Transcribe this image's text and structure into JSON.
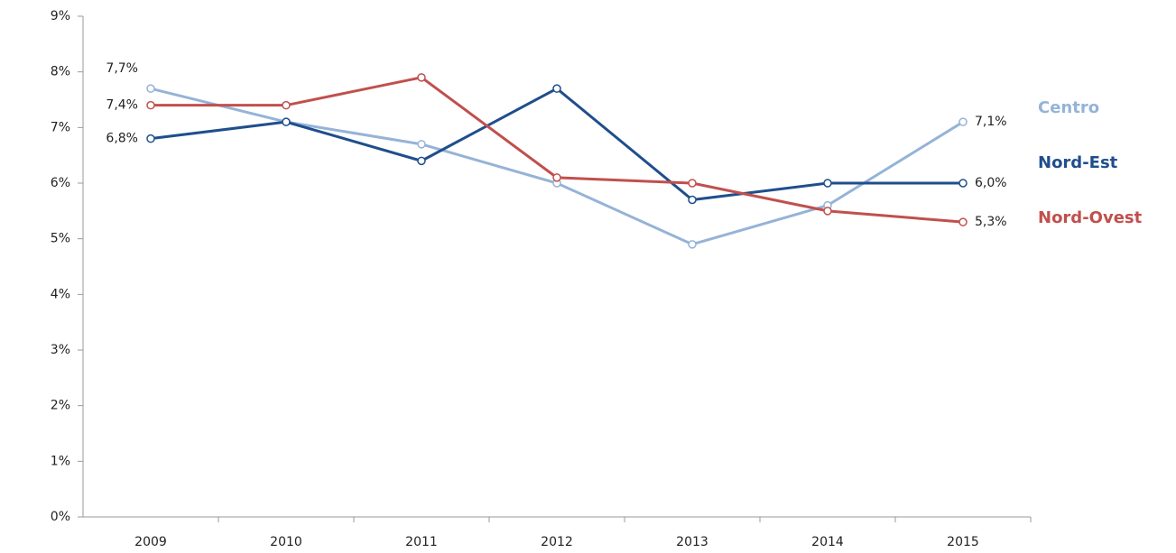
{
  "chart_data": {
    "type": "line",
    "categories": [
      "2009",
      "2010",
      "2011",
      "2012",
      "2013",
      "2014",
      "2015"
    ],
    "series": [
      {
        "name": "Centro",
        "color": "#95b3d7",
        "values": [
          7.7,
          7.1,
          6.7,
          6.0,
          4.9,
          5.6,
          7.1
        ],
        "value_labels": [
          "7,7%",
          null,
          null,
          null,
          null,
          null,
          "7,1%"
        ]
      },
      {
        "name": "Nord-Est",
        "color": "#1f4e8c",
        "values": [
          6.8,
          7.1,
          6.4,
          7.7,
          5.7,
          6.0,
          6.0
        ],
        "value_labels": [
          "6,8%",
          null,
          null,
          null,
          null,
          null,
          "6,0%"
        ]
      },
      {
        "name": "Nord-Ovest",
        "color": "#c0504d",
        "values": [
          7.4,
          7.4,
          7.9,
          6.1,
          6.0,
          5.5,
          5.3
        ],
        "value_labels": [
          "7,4%",
          null,
          null,
          null,
          null,
          null,
          "5,3%"
        ]
      }
    ],
    "ylim": [
      0,
      9
    ],
    "yticks": [
      {
        "value": 0,
        "label": "0%"
      },
      {
        "value": 1,
        "label": "1%"
      },
      {
        "value": 2,
        "label": "2%"
      },
      {
        "value": 3,
        "label": "3%"
      },
      {
        "value": 4,
        "label": "4%"
      },
      {
        "value": 5,
        "label": "5%"
      },
      {
        "value": 6,
        "label": "6%"
      },
      {
        "value": 7,
        "label": "7%"
      },
      {
        "value": 8,
        "label": "8%"
      },
      {
        "value": 9,
        "label": "9%"
      }
    ],
    "grid": false
  }
}
